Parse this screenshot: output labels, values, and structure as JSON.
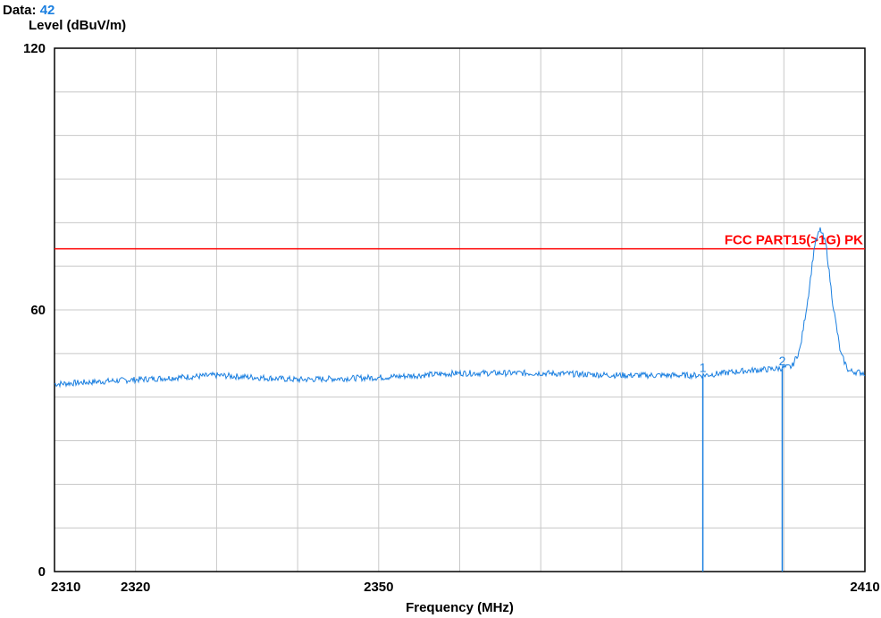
{
  "header": {
    "data_label": "Data:",
    "data_value": "42"
  },
  "chart_data": {
    "type": "line",
    "ylabel": "Level (dBuV/m)",
    "xlabel": "Frequency (MHz)",
    "xlim": [
      2310,
      2410
    ],
    "ylim": [
      0,
      120
    ],
    "x_tick_labels": [
      "2310",
      "2320",
      "2350",
      "2410"
    ],
    "x_tick_values": [
      2310,
      2320,
      2350,
      2410
    ],
    "y_tick_labels": [
      "0",
      "60",
      "120"
    ],
    "y_tick_values": [
      0,
      60,
      120
    ],
    "grid": true,
    "limit_line": {
      "label": "FCC PART15(>1G) PK",
      "value": 74,
      "color": "#ff0000"
    },
    "markers": [
      {
        "label": "1",
        "x": 2390,
        "y": 45
      },
      {
        "label": "2",
        "x": 2399.8,
        "y": 46.5
      }
    ],
    "series": [
      {
        "color": "#1a7fe0",
        "x": [
          2310,
          2320,
          2330,
          2340,
          2350,
          2360,
          2370,
          2380,
          2390,
          2395,
          2399,
          2401,
          2402,
          2403,
          2403.8,
          2404.5,
          2405.2,
          2406,
          2407,
          2408,
          2410
        ],
        "y": [
          43,
          44,
          45,
          44,
          44.5,
          45.5,
          45.5,
          45,
          45,
          46,
          46.5,
          47,
          51,
          63,
          75,
          78.5,
          75,
          62,
          50,
          46,
          45.5
        ]
      }
    ]
  }
}
